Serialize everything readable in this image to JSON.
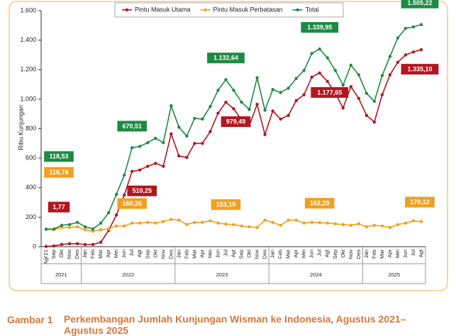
{
  "chart_data": {
    "type": "line",
    "ylabel": "Ribu Kunjungan",
    "caption_number": "Gambar 1",
    "caption": "Perkembangan Jumlah Kunjungan Wisman ke Indonesia, Agustus 2021–Agustus 2025",
    "ylim": [
      0,
      1600
    ],
    "yticks": [
      0,
      200,
      400,
      600,
      800,
      {
        "value": 1000,
        "label": "1.000"
      },
      {
        "value": 1200,
        "label": "1.200"
      },
      {
        "value": 1400,
        "label": "1.400"
      },
      {
        "value": 1600,
        "label": "1.600"
      }
    ],
    "grid": false,
    "legend": "top",
    "years": [
      "2021",
      "2022",
      "2023",
      "2024",
      "2025"
    ],
    "categories": [
      "Agt'21",
      "Sep",
      "Okt",
      "Nov",
      "Des",
      "Jan",
      "Feb",
      "Mar",
      "Apr",
      "Mei",
      "Jun",
      "Jul",
      "Agt",
      "Sep",
      "Okt",
      "Nov",
      "Des",
      "Jan",
      "Feb",
      "Mar",
      "Apr",
      "Mei",
      "Jun",
      "Jul",
      "Agt",
      "Sep",
      "Okt",
      "Nov",
      "Des",
      "Jan",
      "Feb",
      "Mar",
      "Apr",
      "Mei",
      "Jun",
      "Jul",
      "Agt",
      "Sep",
      "Okt",
      "Nov",
      "Des",
      "Jan",
      "Feb",
      "Mar",
      "Apr",
      "Mei",
      "Jun",
      "Jul",
      "Agt"
    ],
    "series": [
      {
        "name": "Pintu Masuk Utama",
        "color": "#b0171f",
        "values": [
          1.77,
          5,
          15,
          20,
          20,
          15,
          15,
          30,
          110,
          215,
          350,
          510.25,
          520,
          545,
          565,
          545,
          765,
          615,
          605,
          700,
          700,
          780,
          905,
          979.49,
          935,
          860,
          820,
          965,
          760,
          920,
          865,
          890,
          990,
          1030,
          1150,
          1177.65,
          1120,
          1040,
          940,
          1085,
          1005,
          890,
          845,
          1030,
          1165,
          1250,
          1300,
          1320,
          1335.1
        ],
        "value_labels": [
          "1,77",
          null,
          null,
          null,
          null,
          null,
          null,
          null,
          null,
          null,
          null,
          "510,25",
          null,
          null,
          null,
          null,
          null,
          null,
          null,
          null,
          null,
          null,
          null,
          "979,49",
          null,
          null,
          null,
          null,
          null,
          null,
          null,
          null,
          null,
          null,
          null,
          "1.177,65",
          null,
          null,
          null,
          null,
          null,
          null,
          null,
          null,
          null,
          null,
          null,
          null,
          "1.335,10"
        ]
      },
      {
        "name": "Pintu Masuk Perbatasan",
        "color": "#f0a020",
        "values": [
          116.76,
          115,
          130,
          130,
          135,
          115,
          105,
          115,
          120,
          140,
          140,
          160.26,
          160,
          165,
          160,
          170,
          185,
          180,
          150,
          165,
          165,
          175,
          160,
          153.15,
          150,
          140,
          135,
          130,
          180,
          165,
          145,
          180,
          180,
          160,
          165,
          162.29,
          160,
          155,
          150,
          145,
          155,
          135,
          145,
          140,
          130,
          150,
          160,
          175,
          170.12
        ],
        "value_labels": [
          "116,76",
          null,
          null,
          null,
          null,
          null,
          null,
          null,
          null,
          null,
          null,
          "160,26",
          null,
          null,
          null,
          null,
          null,
          null,
          null,
          null,
          null,
          null,
          null,
          "153,15",
          null,
          null,
          null,
          null,
          null,
          null,
          null,
          null,
          null,
          null,
          null,
          "162,29",
          null,
          null,
          null,
          null,
          null,
          null,
          null,
          null,
          null,
          null,
          null,
          null,
          "170,12"
        ]
      },
      {
        "name": "Total",
        "color": "#1e8a43",
        "values": [
          118.53,
          120,
          145,
          150,
          165,
          135,
          120,
          160,
          230,
          355,
          485,
          670.51,
          680,
          705,
          735,
          705,
          955,
          810,
          750,
          870,
          865,
          950,
          1060,
          1132.64,
          1060,
          980,
          930,
          1145,
          925,
          1065,
          1045,
          1075,
          1140,
          1195,
          1310,
          1339.95,
          1280,
          1195,
          1095,
          1230,
          1165,
          1040,
          985,
          1160,
          1290,
          1415,
          1480,
          1490,
          1505.22
        ],
        "value_labels": [
          "118,53",
          null,
          null,
          null,
          null,
          null,
          null,
          null,
          null,
          null,
          null,
          "670,51",
          null,
          null,
          null,
          null,
          null,
          null,
          null,
          null,
          null,
          null,
          null,
          "1.132,64",
          null,
          null,
          null,
          null,
          null,
          null,
          null,
          null,
          null,
          null,
          null,
          "1.339,95",
          null,
          null,
          null,
          null,
          null,
          null,
          null,
          null,
          null,
          null,
          null,
          null,
          "1.505,22"
        ]
      }
    ]
  }
}
